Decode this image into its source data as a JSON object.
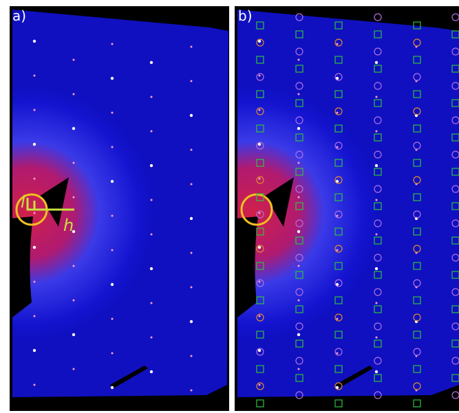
{
  "panels": {
    "a": {
      "label": "a)",
      "axis_l": "l",
      "axis_h": "h"
    },
    "b": {
      "label": "b)"
    }
  }
}
